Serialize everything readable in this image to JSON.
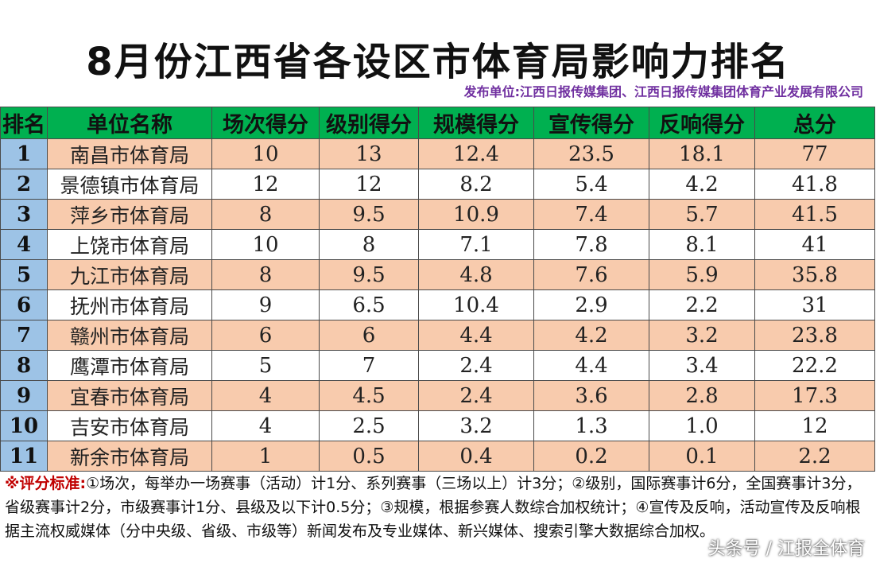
{
  "title": "8月份江西省各设区市体育局影响力排名",
  "publisher": "发布单位:江西日报传媒集团、江西日报传媒集团体育产业发展有限公司",
  "table": {
    "headers": [
      "排名",
      "单位名称",
      "场次得分",
      "级别得分",
      "规模得分",
      "宣传得分",
      "反响得分",
      "总分"
    ],
    "rows": [
      [
        "1",
        "南昌市体育局",
        "10",
        "13",
        "12.4",
        "23.5",
        "18.1",
        "77"
      ],
      [
        "2",
        "景德镇市体育局",
        "12",
        "12",
        "8.2",
        "5.4",
        "4.2",
        "41.8"
      ],
      [
        "3",
        "萍乡市体育局",
        "8",
        "9.5",
        "10.9",
        "7.4",
        "5.7",
        "41.5"
      ],
      [
        "4",
        "上饶市体育局",
        "10",
        "8",
        "7.1",
        "7.8",
        "8.1",
        "41"
      ],
      [
        "5",
        "九江市体育局",
        "8",
        "9.5",
        "4.8",
        "7.6",
        "5.9",
        "35.8"
      ],
      [
        "6",
        "抚州市体育局",
        "9",
        "6.5",
        "10.4",
        "2.9",
        "2.2",
        "31"
      ],
      [
        "7",
        "赣州市体育局",
        "6",
        "6",
        "4.4",
        "4.2",
        "3.2",
        "23.8"
      ],
      [
        "8",
        "鹰潭市体育局",
        "5",
        "7",
        "2.4",
        "4.4",
        "3.4",
        "22.2"
      ],
      [
        "9",
        "宜春市体育局",
        "4",
        "4.5",
        "2.4",
        "3.6",
        "2.8",
        "17.3"
      ],
      [
        "10",
        "吉安市体育局",
        "4",
        "2.5",
        "3.2",
        "1.3",
        "1.0",
        "12"
      ],
      [
        "11",
        "新余市体育局",
        "1",
        "0.5",
        "0.4",
        "0.2",
        "0.1",
        "2.2"
      ]
    ]
  },
  "note": {
    "label": "※评分标准:",
    "text": "①场次，每举办一场赛事（活动）计1分、系列赛事（三场以上）计3分；②级别，国际赛事计6分，全国赛事计3分，省级赛事计2分，市级赛事计1分、县级及以下计0.5分；③规模，根据参赛人数综合加权统计；④宣传及反响，活动宣传及反响根据主流权威媒体（分中央级、省级、市级等）新闻发布及专业媒体、新兴媒体、搜索引擎大数据综合加权。"
  },
  "watermark": "头条号 / 江报全体育",
  "colors": {
    "header_bg": "#00b050",
    "rank_bg": "#9dc3e6",
    "odd_row_bg": "#f8cbad",
    "publisher_text": "#7030a0",
    "note_label": "#c00000"
  }
}
